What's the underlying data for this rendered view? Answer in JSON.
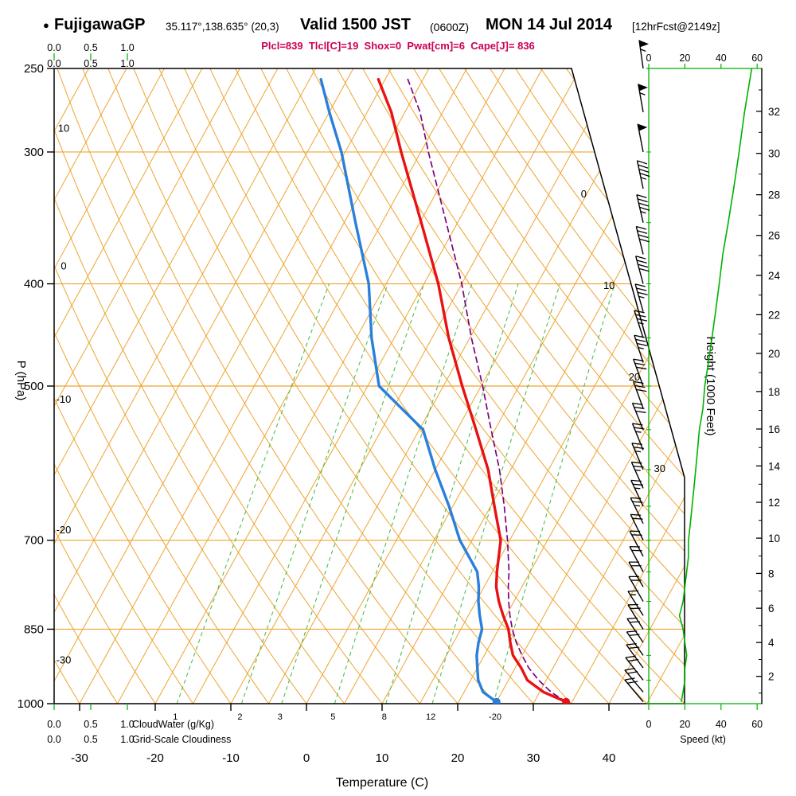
{
  "header": {
    "bullet": "●",
    "station": "FujigawaGP",
    "coords": "35.117°,138.635° (20,3)",
    "valid": "Valid 1500 JST",
    "valid_z": "(0600Z)",
    "date": "MON 14 Jul 2014",
    "fcst": "[12hrFcst@2149z]",
    "indices_line": "Plcl=839  Tlcl[C]=19  Shox=0  Pwat[cm]=6  Cape[J]= 836"
  },
  "axes": {
    "left_label": "P (hPa)",
    "bottom_label": "Temperature (C)",
    "right_label": "Height (1000 Feet)",
    "speed_label": "Speed (kt)",
    "cloudwater_label": "CloudWater (g/Kg)",
    "cloudiness_label": "Grid-Scale Cloudiness",
    "pressure_ticks": [
      250,
      300,
      400,
      500,
      700,
      850,
      1000
    ],
    "temp_ticks": [
      -30,
      -20,
      -10,
      0,
      10,
      20,
      30,
      40
    ],
    "height_ticks": [
      2,
      4,
      6,
      8,
      10,
      12,
      14,
      16,
      18,
      20,
      22,
      24,
      26,
      28,
      30,
      32
    ],
    "speed_ticks": [
      0,
      20,
      40,
      60
    ],
    "cloud_scale_ticks": [
      "0.0",
      "0.5",
      "1.0"
    ],
    "dry_adiabat_labels": [
      10,
      0,
      -10,
      -20,
      -30
    ],
    "isotherm_labels": [
      0,
      10,
      20,
      30
    ],
    "mixing_ratio_labels": [
      1,
      2,
      3,
      5,
      8,
      12
    ],
    "stray_label": "-20"
  },
  "colors": {
    "grid_orange": "#eda431",
    "mixing_green": "#4fbf4f",
    "axis_green": "#00b100",
    "temp_red": "#e81212",
    "dewp_blue": "#2a7fdc",
    "parcel_purple": "#800080",
    "indices_magenta": "#cc0055",
    "frame_black": "#000000"
  },
  "chart_data": {
    "type": "line",
    "subtype": "skew-t log-p sounding",
    "title": "FujigawaGP 35.117,138.635 Valid 1500 JST (0600Z) MON 14 Jul 2014 [12hrFcst@2149z]",
    "xlabel": "Temperature (C)",
    "ylabel": "P (hPa)",
    "y2label": "Height (1000 Feet)",
    "x_range_c": [
      -35,
      45
    ],
    "pressure_range_hpa": [
      1000,
      250
    ],
    "grid": "skewed isotherms + dry adiabats + isobars + mixing-ratio lines",
    "indices": {
      "Plcl": 839,
      "Tlcl_C": 19,
      "Shox": 0,
      "Pwat_cm": 6,
      "Cape_J": 836
    },
    "mixing_ratio_lines_gkg": [
      1,
      2,
      3,
      5,
      8,
      12,
      20
    ],
    "pressure_hpa": [
      996,
      975,
      950,
      925,
      900,
      875,
      850,
      825,
      800,
      775,
      750,
      700,
      650,
      600,
      550,
      500,
      450,
      400,
      350,
      300,
      275,
      256
    ],
    "series": [
      {
        "name": "temperature",
        "units": "C",
        "color_key": "temp_red",
        "values": [
          34.2,
          30.5,
          27.5,
          25.8,
          23.8,
          22.5,
          21.3,
          19.6,
          18.0,
          16.6,
          15.6,
          13.8,
          10.5,
          7.0,
          2.5,
          -2.5,
          -7.8,
          -13.1,
          -19.8,
          -27.6,
          -31.8,
          -35.9
        ]
      },
      {
        "name": "dewpoint",
        "units": "C",
        "color_key": "dewp_blue",
        "values": [
          25.0,
          22.5,
          21.0,
          20.0,
          19.0,
          18.3,
          17.8,
          16.5,
          15.3,
          14.3,
          13.0,
          8.4,
          4.5,
          0.0,
          -4.5,
          -13.5,
          -18.0,
          -22.3,
          -28.5,
          -35.5,
          -40.0,
          -43.5
        ]
      },
      {
        "name": "parcel",
        "units": "C",
        "color_key": "parcel_purple",
        "values": [
          34.2,
          31.5,
          29.0,
          26.8,
          25.0,
          23.3,
          21.8,
          20.5,
          19.3,
          18.2,
          17.2,
          14.7,
          11.8,
          8.5,
          4.5,
          0.2,
          -4.8,
          -10.0,
          -16.5,
          -24.0,
          -28.0,
          -32.0
        ]
      }
    ],
    "winds_units": [
      "pressure_hpa",
      "speed_kt",
      "direction_deg_from"
    ],
    "winds": [
      [
        996,
        18,
        320
      ],
      [
        975,
        19,
        320
      ],
      [
        950,
        20,
        322
      ],
      [
        925,
        20,
        324
      ],
      [
        900,
        21,
        325
      ],
      [
        875,
        20,
        326
      ],
      [
        850,
        19,
        328
      ],
      [
        825,
        17,
        328
      ],
      [
        800,
        19,
        330
      ],
      [
        775,
        20,
        330
      ],
      [
        750,
        21,
        332
      ],
      [
        725,
        22,
        332
      ],
      [
        700,
        22,
        334
      ],
      [
        675,
        23,
        334
      ],
      [
        650,
        24,
        335
      ],
      [
        625,
        25,
        336
      ],
      [
        600,
        26,
        337
      ],
      [
        575,
        27,
        338
      ],
      [
        550,
        28,
        338
      ],
      [
        525,
        30,
        340
      ],
      [
        500,
        31,
        340
      ],
      [
        475,
        33,
        342
      ],
      [
        450,
        35,
        342
      ],
      [
        425,
        37,
        344
      ],
      [
        400,
        39,
        345
      ],
      [
        375,
        41,
        346
      ],
      [
        350,
        44,
        347
      ],
      [
        325,
        47,
        348
      ],
      [
        300,
        50,
        349
      ],
      [
        275,
        53,
        350
      ],
      [
        250,
        57,
        352
      ]
    ]
  }
}
